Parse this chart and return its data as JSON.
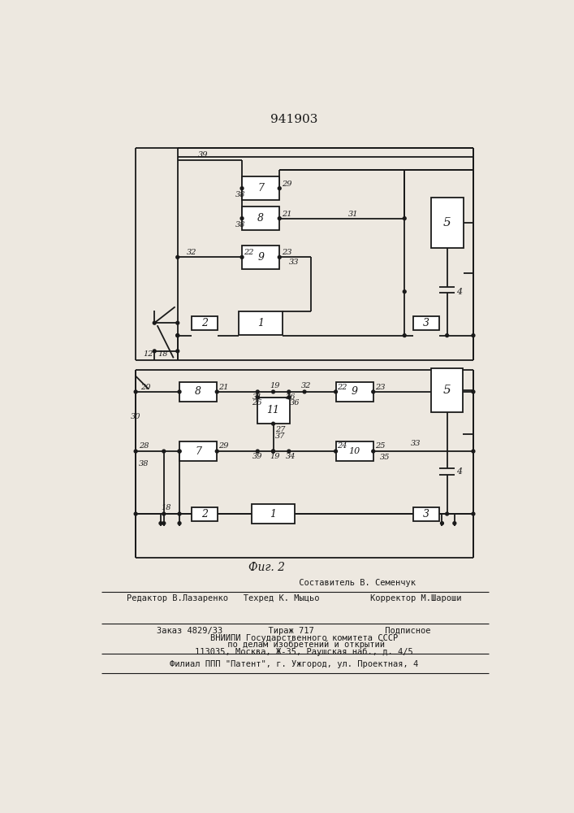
{
  "title": "941903",
  "fig2_label": "Фиг. 2",
  "footer_lines": [
    "                         Составитель В. Семенчук",
    "Редактор В.Лазаренко   Техред К. Мыцьо          Корректор М.Шароши",
    "Заказ 4829/33         Тираж 717              Подписное",
    "    ВНИИПИ Государственного комитета СССР",
    "     по делам изобретений и открытий",
    "    113035, Москва, Ж-35, Раушская наб., д. 4/5",
    "Филиал ППП \"Патент\", г. Ужгород, ул. Проектная, 4"
  ],
  "bg_color": "#ede8e0",
  "line_color": "#1a1a1a",
  "box_color": "#ffffff"
}
